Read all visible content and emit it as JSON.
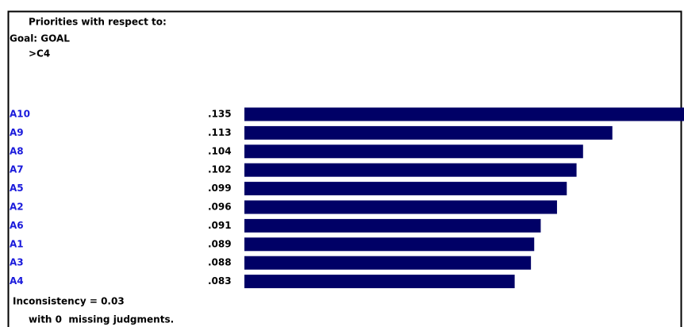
{
  "header": {
    "title": "Priorities with respect to:",
    "goal": "Goal: GOAL",
    "node": ">C4"
  },
  "chart_data": {
    "type": "bar",
    "categories": [
      "A10",
      "A9",
      "A8",
      "A7",
      "A5",
      "A2",
      "A6",
      "A1",
      "A3",
      "A4"
    ],
    "values": [
      0.135,
      0.113,
      0.104,
      0.102,
      0.099,
      0.096,
      0.091,
      0.089,
      0.088,
      0.083
    ],
    "value_labels": [
      ".135",
      ".113",
      ".104",
      ".102",
      ".099",
      ".096",
      ".091",
      ".089",
      ".088",
      ".083"
    ],
    "color": "#000066",
    "label_color": "#1a1adb"
  },
  "footer": {
    "inconsistency": "Inconsistency = 0.03",
    "missing": "with 0  missing judgments."
  }
}
